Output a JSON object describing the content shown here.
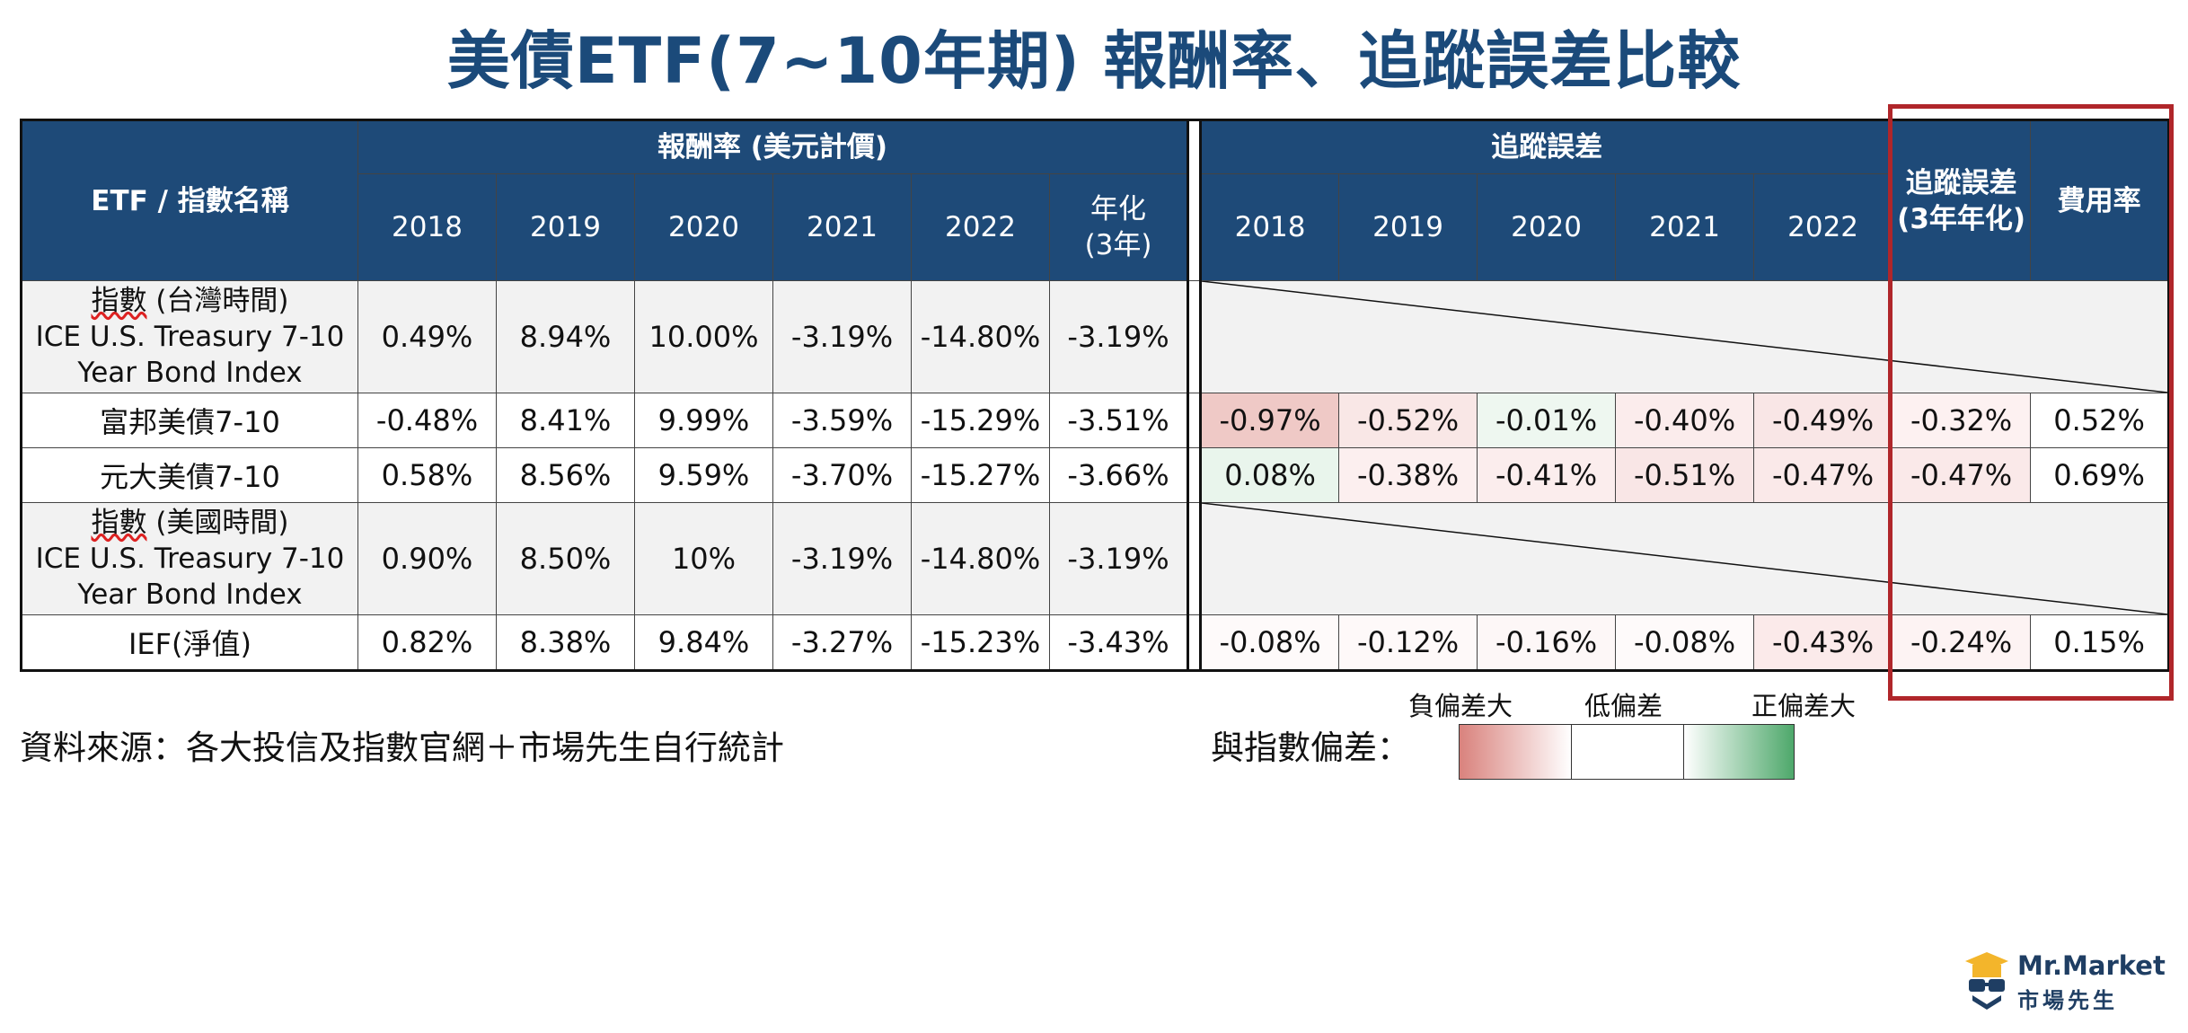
{
  "title": "美債ETF(7~10年期) 報酬率、追蹤誤差比較",
  "header": {
    "name_col": "ETF / 指數名稱",
    "return_group": "報酬率 (美元計價)",
    "tracking_group": "追蹤誤差",
    "years": [
      "2018",
      "2019",
      "2020",
      "2021",
      "2022"
    ],
    "annualized_line1": "年化",
    "annualized_line2": "(3年)",
    "te_annual_line1": "追蹤誤差",
    "te_annual_line2": "(3年年化)",
    "expense": "費用率"
  },
  "rows": [
    {
      "name_lines": [
        "指數 (台灣時間)",
        "ICE U.S. Treasury 7-10",
        "Year Bond Index"
      ],
      "index_row": true,
      "returns": [
        "0.49%",
        "8.94%",
        "10.00%",
        "-3.19%",
        "-14.80%",
        "-3.19%"
      ]
    },
    {
      "name_lines": [
        "富邦美債7-10"
      ],
      "index_row": false,
      "returns": [
        "-0.48%",
        "8.41%",
        "9.99%",
        "-3.59%",
        "-15.29%",
        "-3.51%"
      ],
      "tracking": [
        "-0.97%",
        "-0.52%",
        "-0.01%",
        "-0.40%",
        "-0.49%"
      ],
      "tracking_colors": [
        "#efc9c6",
        "#f9e7e6",
        "#eef7f0",
        "#fbecec",
        "#f9e6e6"
      ],
      "te_annual": "-0.32%",
      "te_annual_color": "#fdf1f1",
      "expense": "0.52%"
    },
    {
      "name_lines": [
        "元大美債7-10"
      ],
      "index_row": false,
      "returns": [
        "0.58%",
        "8.56%",
        "9.59%",
        "-3.70%",
        "-15.27%",
        "-3.66%"
      ],
      "tracking": [
        "0.08%",
        "-0.38%",
        "-0.41%",
        "-0.51%",
        "-0.47%"
      ],
      "tracking_colors": [
        "#e9f5ec",
        "#fcefef",
        "#fbeded",
        "#f9e6e6",
        "#fae9e9"
      ],
      "te_annual": "-0.47%",
      "te_annual_color": "#fae9e9",
      "expense": "0.69%"
    },
    {
      "name_lines": [
        "指數 (美國時間)",
        "ICE U.S. Treasury 7-10",
        "Year Bond Index"
      ],
      "index_row": true,
      "returns": [
        "0.90%",
        "8.50%",
        "10%",
        "-3.19%",
        "-14.80%",
        "-3.19%"
      ]
    },
    {
      "name_lines": [
        "IEF(淨值)"
      ],
      "index_row": false,
      "returns": [
        "0.82%",
        "8.38%",
        "9.84%",
        "-3.27%",
        "-15.23%",
        "-3.43%"
      ],
      "tracking": [
        "-0.08%",
        "-0.12%",
        "-0.16%",
        "-0.08%",
        "-0.43%"
      ],
      "tracking_colors": [
        "#fefafa",
        "#fef9f9",
        "#fdf7f7",
        "#fefafa",
        "#fbeaea"
      ],
      "te_annual": "-0.24%",
      "te_annual_color": "#fdf3f3",
      "expense": "0.15%"
    }
  ],
  "source": "資料來源：各大投信及指數官網＋市場先生自行統計",
  "legend": {
    "label": "與指數偏差：",
    "negative": "負偏差大",
    "low": "低偏差",
    "positive": "正偏差大",
    "negative_color": "#d9827d",
    "positive_color": "#4ea86b"
  },
  "logo": {
    "name_en": "Mr.Market",
    "name_zh": "市場先生",
    "icon": "graduation-cap-glasses-icon",
    "color": "#1f3e63",
    "accent": "#f3b52b"
  }
}
